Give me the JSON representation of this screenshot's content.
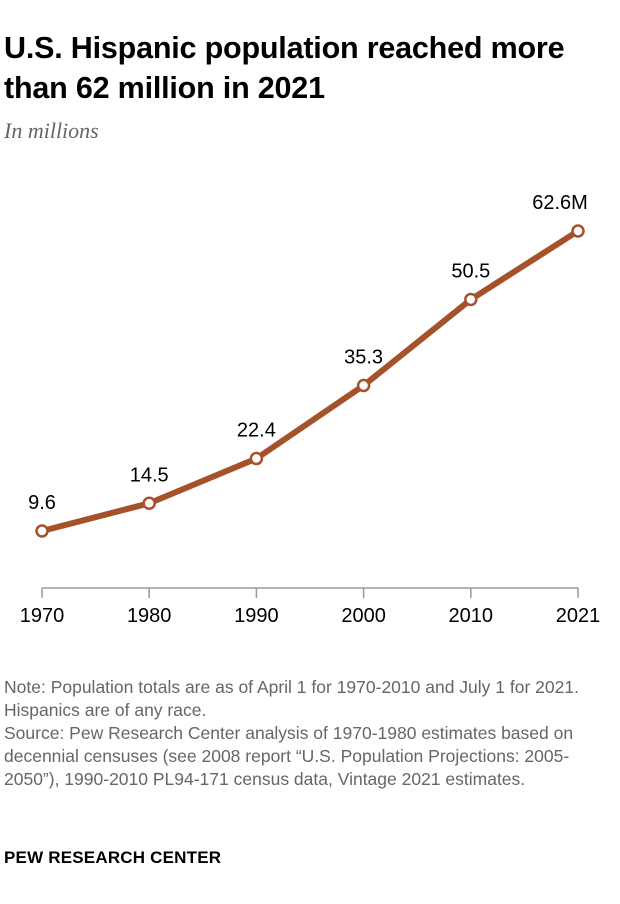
{
  "header": {
    "title": "U.S. Hispanic population reached more than 62 million in 2021",
    "subtitle": "In millions"
  },
  "chart_data": {
    "type": "line",
    "title": "U.S. Hispanic population reached more than 62 million in 2021",
    "subtitle": "In millions",
    "xlabel": "",
    "ylabel": "",
    "x": [
      1970,
      1980,
      1990,
      2000,
      2010,
      2021
    ],
    "x_tick_labels": [
      "1970",
      "1980",
      "1990",
      "2000",
      "2010",
      "2021"
    ],
    "series": [
      {
        "values": [
          9.6,
          14.5,
          22.4,
          35.3,
          50.5,
          62.6
        ],
        "data_labels": [
          "9.6",
          "14.5",
          "22.4",
          "35.3",
          "50.5",
          "62.6M"
        ],
        "color": "#a5522a"
      }
    ],
    "ylim": [
      0,
      70
    ],
    "grid": false,
    "legend": "none"
  },
  "footer": {
    "note": "Note: Population totals are as of April 1 for 1970-2010 and July 1 for 2021. Hispanics are of any race.",
    "source": "Source: Pew Research Center analysis of 1970-1980 estimates based on decennial censuses (see 2008 report “U.S. Population Projections: 2005-2050”), 1990-2010 PL94-171 census data, Vintage 2021 estimates.",
    "brand": "PEW RESEARCH CENTER"
  },
  "colors": {
    "line": "#a5522a",
    "axis": "#999999",
    "note_text": "#666666"
  }
}
